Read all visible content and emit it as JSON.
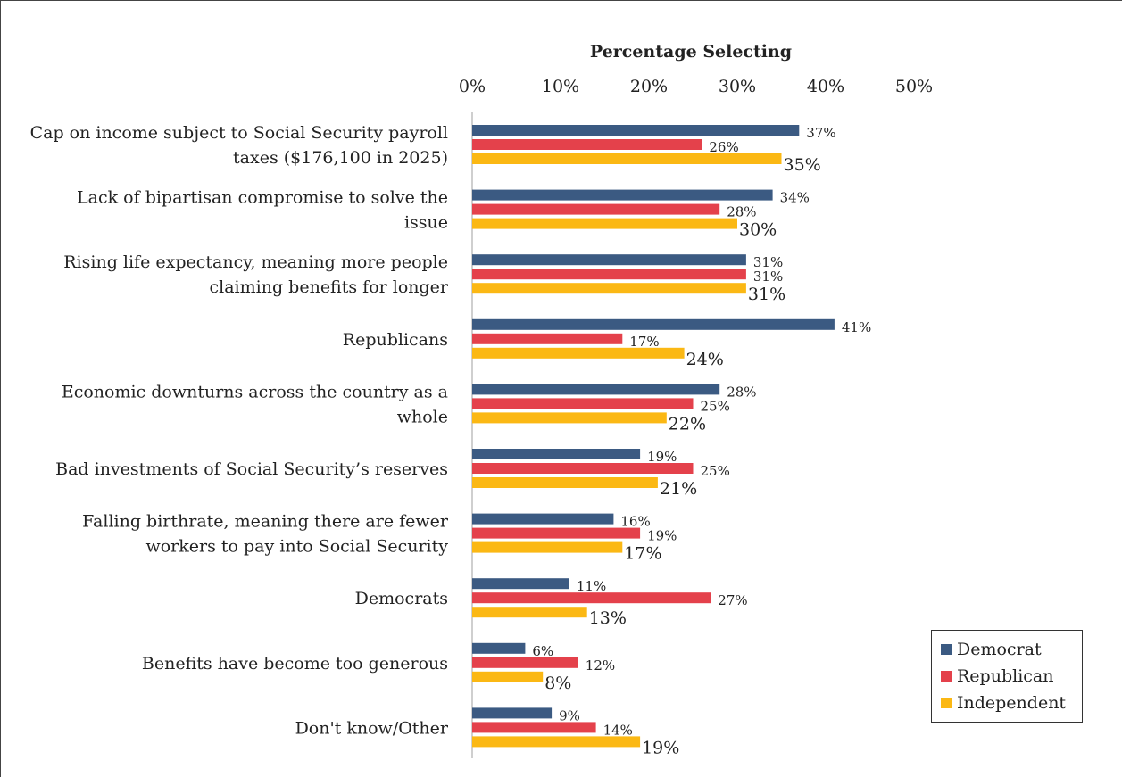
{
  "chart_data": {
    "type": "bar",
    "orientation": "horizontal",
    "title": "",
    "xlabel": "Percentage Selecting",
    "xlim": [
      0,
      50
    ],
    "x_ticks": [
      "0%",
      "10%",
      "20%",
      "30%",
      "40%",
      "50%"
    ],
    "grid": false,
    "legend_position": "bottom-right",
    "categories": [
      [
        "Cap on income subject to Social Security payroll",
        "taxes ($176,100 in 2025)"
      ],
      [
        "Lack of bipartisan compromise to solve the",
        "issue"
      ],
      [
        "Rising life expectancy, meaning more people",
        "claiming benefits for longer"
      ],
      [
        "Republicans"
      ],
      [
        "Economic downturns across the country as a",
        "whole"
      ],
      [
        "Bad investments of Social Security’s reserves"
      ],
      [
        "Falling birthrate, meaning there are fewer",
        "workers to pay into Social Security"
      ],
      [
        "Democrats"
      ],
      [
        "Benefits have become too generous"
      ],
      [
        "Don't know/Other"
      ]
    ],
    "series": [
      {
        "name": "Democrat",
        "color": "#3b5a82",
        "values": [
          37,
          34,
          31,
          41,
          28,
          19,
          16,
          11,
          6,
          9
        ]
      },
      {
        "name": "Republican",
        "color": "#e4414b",
        "values": [
          26,
          28,
          31,
          17,
          25,
          25,
          19,
          27,
          12,
          14
        ]
      },
      {
        "name": "Independent",
        "color": "#fbb814",
        "values": [
          35,
          30,
          31,
          24,
          22,
          21,
          17,
          13,
          8,
          19
        ]
      }
    ],
    "value_suffix": "%"
  }
}
